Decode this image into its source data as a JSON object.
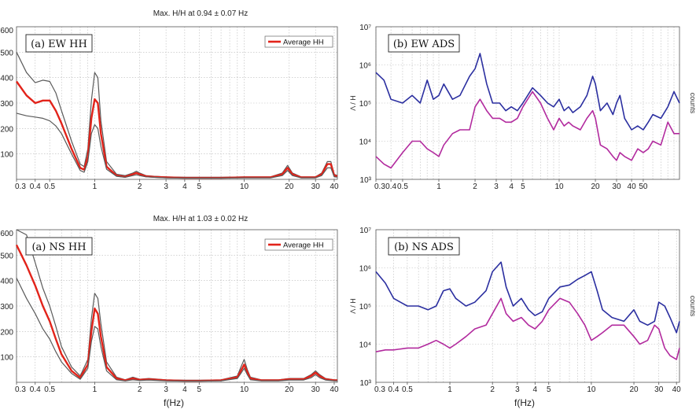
{
  "chart_data": [
    {
      "type": "line",
      "title": "Max. H/H at 0.94 ± 0.07 Hz",
      "panel_label": "(a) EW HH",
      "xscale": "log",
      "xlim": [
        0.3,
        42
      ],
      "xticks": [
        0.3,
        0.4,
        0.5,
        1,
        2,
        3,
        4,
        5,
        10,
        20,
        30,
        40
      ],
      "xtick_labels": [
        "0.3",
        "0.4",
        "0.5",
        "1",
        "2",
        "3",
        "4",
        "5",
        "10",
        "20",
        "30",
        "40"
      ],
      "xlabel": "",
      "ylim": [
        0,
        600
      ],
      "yticks": [
        100,
        200,
        300,
        400,
        500,
        600
      ],
      "ytick_labels": [
        "100",
        "200",
        "300",
        "400",
        "500",
        "600"
      ],
      "ylabel": "",
      "legend": [
        "Average HH"
      ],
      "series": [
        {
          "name": "Upper bound",
          "color": "#5a5a5a",
          "x": [
            0.3,
            0.35,
            0.4,
            0.45,
            0.5,
            0.55,
            0.6,
            0.7,
            0.8,
            0.85,
            0.9,
            0.95,
            1.0,
            1.05,
            1.1,
            1.2,
            1.4,
            1.6,
            1.8,
            1.9,
            2.0,
            2.2,
            2.5,
            3,
            4,
            5,
            7,
            10,
            15,
            18,
            19.5,
            21,
            24,
            30,
            33,
            36,
            38,
            40,
            42
          ],
          "y": [
            500,
            420,
            380,
            390,
            385,
            340,
            270,
            150,
            60,
            50,
            120,
            310,
            420,
            400,
            230,
            70,
            20,
            15,
            25,
            32,
            25,
            15,
            12,
            10,
            8,
            8,
            8,
            10,
            10,
            25,
            55,
            25,
            10,
            10,
            25,
            70,
            70,
            20,
            15
          ]
        },
        {
          "name": "Average HH",
          "color": "#e2231a",
          "x": [
            0.3,
            0.35,
            0.4,
            0.45,
            0.5,
            0.55,
            0.6,
            0.7,
            0.8,
            0.85,
            0.9,
            0.95,
            1.0,
            1.05,
            1.1,
            1.2,
            1.4,
            1.6,
            1.8,
            1.9,
            2.0,
            2.2,
            2.5,
            3,
            4,
            5,
            7,
            10,
            15,
            18,
            19.5,
            21,
            24,
            30,
            33,
            36,
            38,
            40,
            42
          ],
          "y": [
            385,
            330,
            300,
            310,
            310,
            270,
            220,
            120,
            45,
            38,
            90,
            240,
            315,
            300,
            180,
            50,
            15,
            10,
            20,
            25,
            20,
            12,
            10,
            8,
            6,
            6,
            6,
            8,
            8,
            20,
            45,
            20,
            8,
            8,
            20,
            60,
            60,
            15,
            12
          ]
        },
        {
          "name": "Lower bound",
          "color": "#5a5a5a",
          "x": [
            0.3,
            0.35,
            0.4,
            0.45,
            0.5,
            0.55,
            0.6,
            0.7,
            0.8,
            0.85,
            0.9,
            0.95,
            1.0,
            1.05,
            1.1,
            1.2,
            1.4,
            1.6,
            1.8,
            1.9,
            2.0,
            2.2,
            2.5,
            3,
            4,
            5,
            7,
            10,
            15,
            18,
            19.5,
            21,
            24,
            30,
            33,
            36,
            38,
            40,
            42
          ],
          "y": [
            260,
            250,
            245,
            240,
            230,
            210,
            180,
            100,
            35,
            28,
            70,
            180,
            215,
            200,
            130,
            40,
            12,
            8,
            15,
            18,
            15,
            10,
            8,
            6,
            5,
            5,
            5,
            6,
            6,
            15,
            35,
            15,
            6,
            6,
            15,
            45,
            45,
            10,
            9
          ]
        }
      ]
    },
    {
      "type": "line",
      "title": "",
      "panel_label": "(b) EW ADS",
      "xscale": "log",
      "xlim": [
        0.3,
        100
      ],
      "xticks": [
        0.3,
        0.4,
        0.5,
        1,
        2,
        3,
        4,
        5,
        10,
        20,
        30,
        40,
        50
      ],
      "xtick_labels": [
        "0.3",
        "0.4",
        "0.5",
        "1",
        "2",
        "3",
        "4",
        "5",
        "10",
        "20",
        "30",
        "40",
        "50"
      ],
      "xlabel": "",
      "yscale": "log",
      "ylim_exp": [
        3,
        7
      ],
      "ytick_labels": [
        "10^3",
        "10^4",
        "10^5",
        "10^6",
        "10^7"
      ],
      "ylabel": "Λ / H",
      "right_label": "counts",
      "series": [
        {
          "name": "H",
          "color": "#2b2fa0",
          "x": [
            0.3,
            0.35,
            0.4,
            0.5,
            0.6,
            0.7,
            0.8,
            0.9,
            1.0,
            1.1,
            1.3,
            1.5,
            1.8,
            2.0,
            2.2,
            2.5,
            2.8,
            3.2,
            3.6,
            4.0,
            4.5,
            5,
            6,
            7,
            8,
            9,
            10,
            11,
            12,
            13,
            15,
            17,
            19,
            20,
            22,
            25,
            28,
            30,
            32,
            35,
            40,
            45,
            50,
            55,
            60,
            70,
            80,
            90,
            100
          ],
          "y": [
            5.8,
            5.6,
            5.1,
            5.0,
            5.2,
            5.0,
            5.6,
            5.1,
            5.2,
            5.5,
            5.1,
            5.2,
            5.7,
            5.9,
            6.3,
            5.5,
            5.0,
            5.0,
            4.8,
            4.9,
            4.8,
            5.0,
            5.4,
            5.2,
            5.0,
            4.9,
            5.1,
            4.8,
            4.9,
            4.75,
            4.9,
            5.2,
            5.7,
            5.5,
            4.8,
            5.0,
            4.7,
            5.0,
            5.2,
            4.6,
            4.3,
            4.4,
            4.3,
            4.5,
            4.7,
            4.6,
            4.9,
            5.3,
            5.0
          ]
        },
        {
          "name": "V",
          "color": "#b22a9e",
          "x": [
            0.3,
            0.35,
            0.4,
            0.5,
            0.6,
            0.7,
            0.8,
            0.9,
            1.0,
            1.1,
            1.3,
            1.5,
            1.8,
            2.0,
            2.2,
            2.5,
            2.8,
            3.2,
            3.6,
            4.0,
            4.5,
            5,
            6,
            7,
            8,
            9,
            10,
            11,
            12,
            13,
            15,
            17,
            19,
            20,
            22,
            25,
            28,
            30,
            32,
            35,
            40,
            45,
            50,
            55,
            60,
            70,
            80,
            90,
            100
          ],
          "y": [
            3.6,
            3.4,
            3.3,
            3.7,
            4.0,
            4.0,
            3.8,
            3.7,
            3.6,
            3.9,
            4.2,
            4.3,
            4.3,
            4.9,
            5.1,
            4.8,
            4.6,
            4.6,
            4.5,
            4.5,
            4.6,
            4.9,
            5.3,
            5.0,
            4.6,
            4.3,
            4.6,
            4.4,
            4.5,
            4.4,
            4.3,
            4.6,
            4.8,
            4.6,
            3.9,
            3.8,
            3.6,
            3.5,
            3.7,
            3.6,
            3.5,
            3.8,
            3.7,
            3.8,
            4.0,
            3.9,
            4.5,
            4.2,
            4.2
          ]
        }
      ]
    },
    {
      "type": "line",
      "title": "Max. H/H at  1.03 ± 0.02 Hz",
      "panel_label": "(a) NS HH",
      "xscale": "log",
      "xlim": [
        0.3,
        42
      ],
      "xticks": [
        0.3,
        0.4,
        0.5,
        1,
        2,
        3,
        4,
        5,
        10,
        20,
        30,
        40
      ],
      "xtick_labels": [
        "0.3",
        "0.4",
        "0.5",
        "1",
        "2",
        "3",
        "4",
        "5",
        "10",
        "20",
        "30",
        "40"
      ],
      "xlabel": "f(Hz)",
      "ylim": [
        0,
        600
      ],
      "yticks": [
        100,
        200,
        300,
        400,
        500,
        600
      ],
      "ytick_labels": [
        "100",
        "200",
        "300",
        "400",
        "500",
        "600"
      ],
      "ylabel": "",
      "legend": [
        "Average HH"
      ],
      "series": [
        {
          "name": "Upper bound",
          "color": "#5a5a5a",
          "x": [
            0.3,
            0.35,
            0.4,
            0.45,
            0.5,
            0.55,
            0.6,
            0.7,
            0.8,
            0.9,
            0.95,
            1.0,
            1.05,
            1.1,
            1.2,
            1.4,
            1.6,
            1.8,
            2.0,
            2.3,
            3,
            4,
            5,
            7,
            9,
            9.5,
            10,
            10.5,
            11,
            13,
            17,
            20,
            25,
            28,
            30,
            32,
            35,
            40,
            42
          ],
          "y": [
            600,
            580,
            470,
            370,
            300,
            220,
            140,
            60,
            25,
            90,
            250,
            350,
            330,
            230,
            80,
            20,
            10,
            20,
            12,
            15,
            10,
            8,
            8,
            10,
            25,
            60,
            90,
            50,
            20,
            10,
            10,
            15,
            15,
            30,
            45,
            30,
            15,
            10,
            10
          ]
        },
        {
          "name": "Average HH",
          "color": "#e2231a",
          "x": [
            0.3,
            0.35,
            0.4,
            0.45,
            0.5,
            0.55,
            0.6,
            0.7,
            0.8,
            0.9,
            0.95,
            1.0,
            1.05,
            1.1,
            1.2,
            1.4,
            1.6,
            1.8,
            2.0,
            2.3,
            3,
            4,
            5,
            7,
            9,
            9.5,
            10,
            10.5,
            11,
            13,
            17,
            20,
            25,
            28,
            30,
            32,
            35,
            40,
            42
          ],
          "y": [
            540,
            460,
            380,
            300,
            240,
            170,
            110,
            45,
            18,
            70,
            200,
            290,
            270,
            180,
            60,
            15,
            8,
            15,
            10,
            12,
            8,
            6,
            6,
            8,
            20,
            45,
            70,
            40,
            15,
            8,
            8,
            12,
            12,
            25,
            38,
            25,
            12,
            8,
            8
          ]
        },
        {
          "name": "Lower bound",
          "color": "#5a5a5a",
          "x": [
            0.3,
            0.35,
            0.4,
            0.45,
            0.5,
            0.55,
            0.6,
            0.7,
            0.8,
            0.9,
            0.95,
            1.0,
            1.05,
            1.1,
            1.2,
            1.4,
            1.6,
            1.8,
            2.0,
            2.3,
            3,
            4,
            5,
            7,
            9,
            9.5,
            10,
            10.5,
            11,
            13,
            17,
            20,
            25,
            28,
            30,
            32,
            35,
            40,
            42
          ],
          "y": [
            410,
            330,
            270,
            210,
            170,
            120,
            80,
            35,
            12,
            55,
            160,
            220,
            210,
            140,
            45,
            10,
            6,
            10,
            7,
            9,
            6,
            5,
            5,
            6,
            15,
            35,
            55,
            30,
            10,
            6,
            6,
            9,
            9,
            18,
            30,
            18,
            9,
            6,
            6
          ]
        }
      ]
    },
    {
      "type": "line",
      "title": "",
      "panel_label": "(b) NS ADS",
      "xscale": "log",
      "xlim": [
        0.3,
        42
      ],
      "xticks": [
        0.3,
        0.4,
        0.5,
        1,
        2,
        3,
        4,
        5,
        10,
        20,
        30,
        40
      ],
      "xtick_labels": [
        "0.3",
        "0.4",
        "0.5",
        "1",
        "2",
        "3",
        "4",
        "5",
        "10",
        "20",
        "30",
        "40"
      ],
      "xlabel": "f(Hz)",
      "yscale": "log",
      "ylim_exp": [
        3,
        7
      ],
      "ytick_labels": [
        "10^3",
        "10^4",
        "10^5",
        "10^6",
        "10^7"
      ],
      "ylabel": "Λ / H",
      "right_label": "counts",
      "series": [
        {
          "name": "H",
          "color": "#2b2fa0",
          "x": [
            0.3,
            0.35,
            0.4,
            0.5,
            0.6,
            0.7,
            0.8,
            0.9,
            1.0,
            1.1,
            1.3,
            1.5,
            1.8,
            2.0,
            2.3,
            2.5,
            2.8,
            3.2,
            3.6,
            4.0,
            4.5,
            5,
            6,
            7,
            8,
            9,
            10,
            11,
            12,
            14,
            17,
            20,
            22,
            25,
            28,
            30,
            33,
            36,
            40,
            42
          ],
          "y": [
            5.9,
            5.6,
            5.2,
            5.0,
            5.0,
            4.9,
            5.0,
            5.4,
            5.45,
            5.2,
            5.0,
            5.1,
            5.4,
            5.9,
            6.15,
            5.5,
            5.0,
            5.2,
            4.9,
            4.75,
            4.85,
            5.2,
            5.5,
            5.55,
            5.7,
            5.8,
            5.9,
            5.4,
            4.9,
            4.7,
            4.6,
            4.9,
            4.6,
            4.5,
            4.6,
            5.1,
            5.0,
            4.7,
            4.3,
            4.6
          ]
        },
        {
          "name": "V",
          "color": "#b22a9e",
          "x": [
            0.3,
            0.35,
            0.4,
            0.5,
            0.6,
            0.7,
            0.8,
            0.9,
            1.0,
            1.1,
            1.3,
            1.5,
            1.8,
            2.0,
            2.3,
            2.5,
            2.8,
            3.2,
            3.6,
            4.0,
            4.5,
            5,
            6,
            7,
            8,
            9,
            10,
            11,
            12,
            14,
            17,
            20,
            22,
            25,
            28,
            30,
            33,
            36,
            40,
            42
          ],
          "y": [
            3.8,
            3.85,
            3.85,
            3.9,
            3.9,
            4.0,
            4.1,
            4.0,
            3.9,
            4.0,
            4.2,
            4.4,
            4.5,
            4.8,
            5.2,
            4.8,
            4.6,
            4.7,
            4.5,
            4.4,
            4.6,
            4.9,
            5.2,
            5.1,
            4.8,
            4.5,
            4.1,
            4.2,
            4.3,
            4.5,
            4.5,
            4.2,
            4.0,
            4.1,
            4.5,
            4.4,
            3.9,
            3.7,
            3.6,
            3.9
          ]
        }
      ]
    }
  ]
}
